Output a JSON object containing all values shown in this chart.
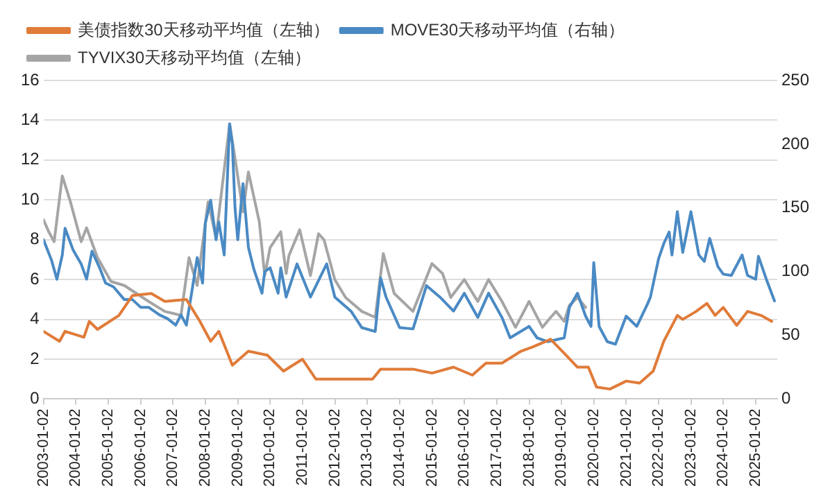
{
  "chart_data": {
    "type": "line",
    "legend": "top",
    "grid": "y",
    "marker": "none",
    "line_style": "solid",
    "xlim": [
      "2003-01",
      "2025-09"
    ],
    "xticks": [
      {
        "value": "2003-01-02",
        "label": "2003-01-02"
      },
      {
        "value": "2004-01-02",
        "label": "2004-01-02"
      },
      {
        "value": "2005-01-02",
        "label": "2005-01-02"
      },
      {
        "value": "2006-01-02",
        "label": "2006-01-02"
      },
      {
        "value": "2007-01-02",
        "label": "2007-01-02"
      },
      {
        "value": "2008-01-02",
        "label": "2008-01-02"
      },
      {
        "value": "2009-01-02",
        "label": "2009-01-02"
      },
      {
        "value": "2010-01-02",
        "label": "2010-01-02"
      },
      {
        "value": "2011-01-02",
        "label": "2011-01-02"
      },
      {
        "value": "2012-01-02",
        "label": "2012-01-02"
      },
      {
        "value": "2013-01-02",
        "label": "2013-01-02"
      },
      {
        "value": "2014-01-02",
        "label": "2014-01-02"
      },
      {
        "value": "2015-01-02",
        "label": "2015-01-02"
      },
      {
        "value": "2016-01-02",
        "label": "2016-01-02"
      },
      {
        "value": "2017-01-02",
        "label": "2017-01-02"
      },
      {
        "value": "2018-01-02",
        "label": "2018-01-02"
      },
      {
        "value": "2019-01-02",
        "label": "2019-01-02"
      },
      {
        "value": "2020-01-02",
        "label": "2020-01-02"
      },
      {
        "value": "2021-01-02",
        "label": "2021-01-02"
      },
      {
        "value": "2022-01-02",
        "label": "2022-01-02"
      },
      {
        "value": "2023-01-02",
        "label": "2023-01-02"
      },
      {
        "value": "2024-01-02",
        "label": "2024-01-02"
      },
      {
        "value": "2025-01-02",
        "label": "2025-01-02"
      }
    ],
    "ylim": [
      0,
      16
    ],
    "yticks": [
      0,
      2,
      4,
      6,
      8,
      10,
      12,
      14,
      16
    ],
    "y2lim": [
      0,
      250
    ],
    "y2ticks": [
      0,
      50,
      100,
      150,
      200,
      250
    ],
    "series": [
      {
        "name": "美债指数30天移动平均值（左轴）",
        "color": "#e07b39",
        "axis": "y",
        "x": [
          "2003-01",
          "2003-07",
          "2003-09",
          "2004-04",
          "2004-06",
          "2004-09",
          "2005-05",
          "2005-10",
          "2006-05",
          "2006-10",
          "2007-06",
          "2007-11",
          "2008-03",
          "2008-06",
          "2008-11",
          "2009-05",
          "2009-12",
          "2010-06",
          "2011-01",
          "2011-06",
          "2012-05",
          "2013-03",
          "2013-06",
          "2014-06",
          "2015-01",
          "2015-09",
          "2016-04",
          "2016-09",
          "2017-03",
          "2017-10",
          "2018-02",
          "2018-09",
          "2019-02",
          "2019-07",
          "2019-11",
          "2020-02",
          "2020-07",
          "2021-01",
          "2021-06",
          "2021-11",
          "2022-03",
          "2022-08",
          "2022-10",
          "2023-03",
          "2023-07",
          "2023-10",
          "2024-01",
          "2024-06",
          "2024-10",
          "2025-03",
          "2025-07"
        ],
        "values": [
          3.4,
          2.9,
          3.4,
          3.1,
          3.9,
          3.5,
          4.2,
          5.2,
          5.3,
          4.9,
          5.0,
          3.9,
          2.9,
          3.4,
          1.7,
          2.4,
          2.2,
          1.4,
          2.0,
          1.0,
          1.0,
          1.0,
          1.5,
          1.5,
          1.3,
          1.6,
          1.2,
          1.8,
          1.8,
          2.4,
          2.6,
          3.0,
          2.3,
          1.6,
          1.6,
          0.6,
          0.5,
          0.9,
          0.8,
          1.4,
          2.9,
          4.2,
          4.0,
          4.4,
          4.8,
          4.2,
          4.6,
          3.7,
          4.4,
          4.2,
          3.9
        ]
      },
      {
        "name": "MOVE30天移动平均值（右轴）",
        "color": "#4a8ac4",
        "axis": "y2",
        "x": [
          "2003-01",
          "2003-04",
          "2003-06",
          "2003-08",
          "2003-09",
          "2003-12",
          "2004-03",
          "2004-05",
          "2004-07",
          "2004-10",
          "2004-12",
          "2005-03",
          "2005-07",
          "2005-10",
          "2006-01",
          "2006-04",
          "2006-08",
          "2006-11",
          "2007-02",
          "2007-04",
          "2007-06",
          "2007-08",
          "2007-10",
          "2007-12",
          "2008-01",
          "2008-03",
          "2008-05",
          "2008-06",
          "2008-08",
          "2008-10",
          "2008-11",
          "2008-12",
          "2009-01",
          "2009-03",
          "2009-05",
          "2009-07",
          "2009-10",
          "2009-11",
          "2010-01",
          "2010-04",
          "2010-05",
          "2010-07",
          "2010-11",
          "2011-04",
          "2011-10",
          "2012-01",
          "2012-07",
          "2012-11",
          "2013-04",
          "2013-06",
          "2013-08",
          "2014-01",
          "2014-06",
          "2014-11",
          "2015-04",
          "2015-09",
          "2016-01",
          "2016-06",
          "2016-10",
          "2017-03",
          "2017-06",
          "2018-01",
          "2018-04",
          "2018-08",
          "2019-02",
          "2019-04",
          "2019-07",
          "2019-10",
          "2019-12",
          "2020-01",
          "2020-03",
          "2020-06",
          "2020-09",
          "2021-01",
          "2021-05",
          "2021-09",
          "2021-10",
          "2022-01",
          "2022-03",
          "2022-05",
          "2022-06",
          "2022-08",
          "2022-10",
          "2023-01",
          "2023-04",
          "2023-06",
          "2023-08",
          "2023-11",
          "2024-01",
          "2024-04",
          "2024-08",
          "2024-10",
          "2025-01",
          "2025-02",
          "2025-05",
          "2025-08"
        ],
        "values": [
          125,
          109,
          94,
          113,
          134,
          117,
          106,
          94,
          116,
          102,
          91,
          88,
          78,
          78,
          72,
          72,
          66,
          63,
          58,
          66,
          58,
          84,
          111,
          91,
          138,
          156,
          125,
          139,
          113,
          216,
          200,
          150,
          125,
          169,
          119,
          102,
          83,
          100,
          103,
          83,
          103,
          80,
          106,
          80,
          106,
          80,
          69,
          56,
          53,
          95,
          80,
          56,
          55,
          89,
          80,
          69,
          83,
          64,
          83,
          64,
          48,
          57,
          48,
          45,
          48,
          72,
          83,
          65,
          57,
          107,
          57,
          45,
          43,
          65,
          57,
          75,
          80,
          110,
          122,
          131,
          113,
          147,
          115,
          147,
          113,
          108,
          126,
          104,
          98,
          97,
          113,
          97,
          94,
          112,
          94,
          77
        ]
      },
      {
        "name": "TYVIX30天移动平均值（左轴）",
        "color": "#a5a5a5",
        "axis": "y",
        "x": [
          "2003-01",
          "2003-03",
          "2003-05",
          "2003-08",
          "2003-11",
          "2004-03",
          "2004-05",
          "2004-09",
          "2005-02",
          "2005-07",
          "2006-04",
          "2006-10",
          "2007-04",
          "2007-07",
          "2007-10",
          "2008-02",
          "2008-05",
          "2008-10",
          "2008-12",
          "2009-03",
          "2009-05",
          "2009-09",
          "2009-11",
          "2010-01",
          "2010-05",
          "2010-07",
          "2010-08",
          "2010-12",
          "2011-04",
          "2011-07",
          "2011-09",
          "2012-01",
          "2012-05",
          "2012-11",
          "2013-04",
          "2013-07",
          "2013-11",
          "2014-06",
          "2015-01",
          "2015-05",
          "2015-08",
          "2016-01",
          "2016-06",
          "2016-10",
          "2017-03",
          "2017-08",
          "2018-01",
          "2018-06",
          "2018-09",
          "2018-11",
          "2019-02",
          "2019-04",
          "2019-07",
          "2019-10"
        ],
        "values": [
          9.0,
          8.4,
          7.9,
          11.2,
          9.9,
          7.9,
          8.6,
          7.1,
          5.9,
          5.7,
          4.9,
          4.4,
          4.2,
          7.1,
          5.7,
          9.9,
          8.1,
          13.8,
          12.1,
          9.4,
          11.4,
          8.9,
          6.2,
          7.6,
          8.4,
          6.3,
          7.2,
          8.5,
          6.2,
          8.3,
          8.0,
          6.0,
          5.1,
          4.4,
          4.1,
          7.3,
          5.3,
          4.4,
          6.8,
          6.3,
          5.1,
          6.0,
          4.9,
          6.0,
          4.9,
          3.6,
          4.9,
          3.6,
          4.1,
          4.4,
          3.9,
          4.7,
          5.1,
          4.6
        ]
      }
    ]
  }
}
